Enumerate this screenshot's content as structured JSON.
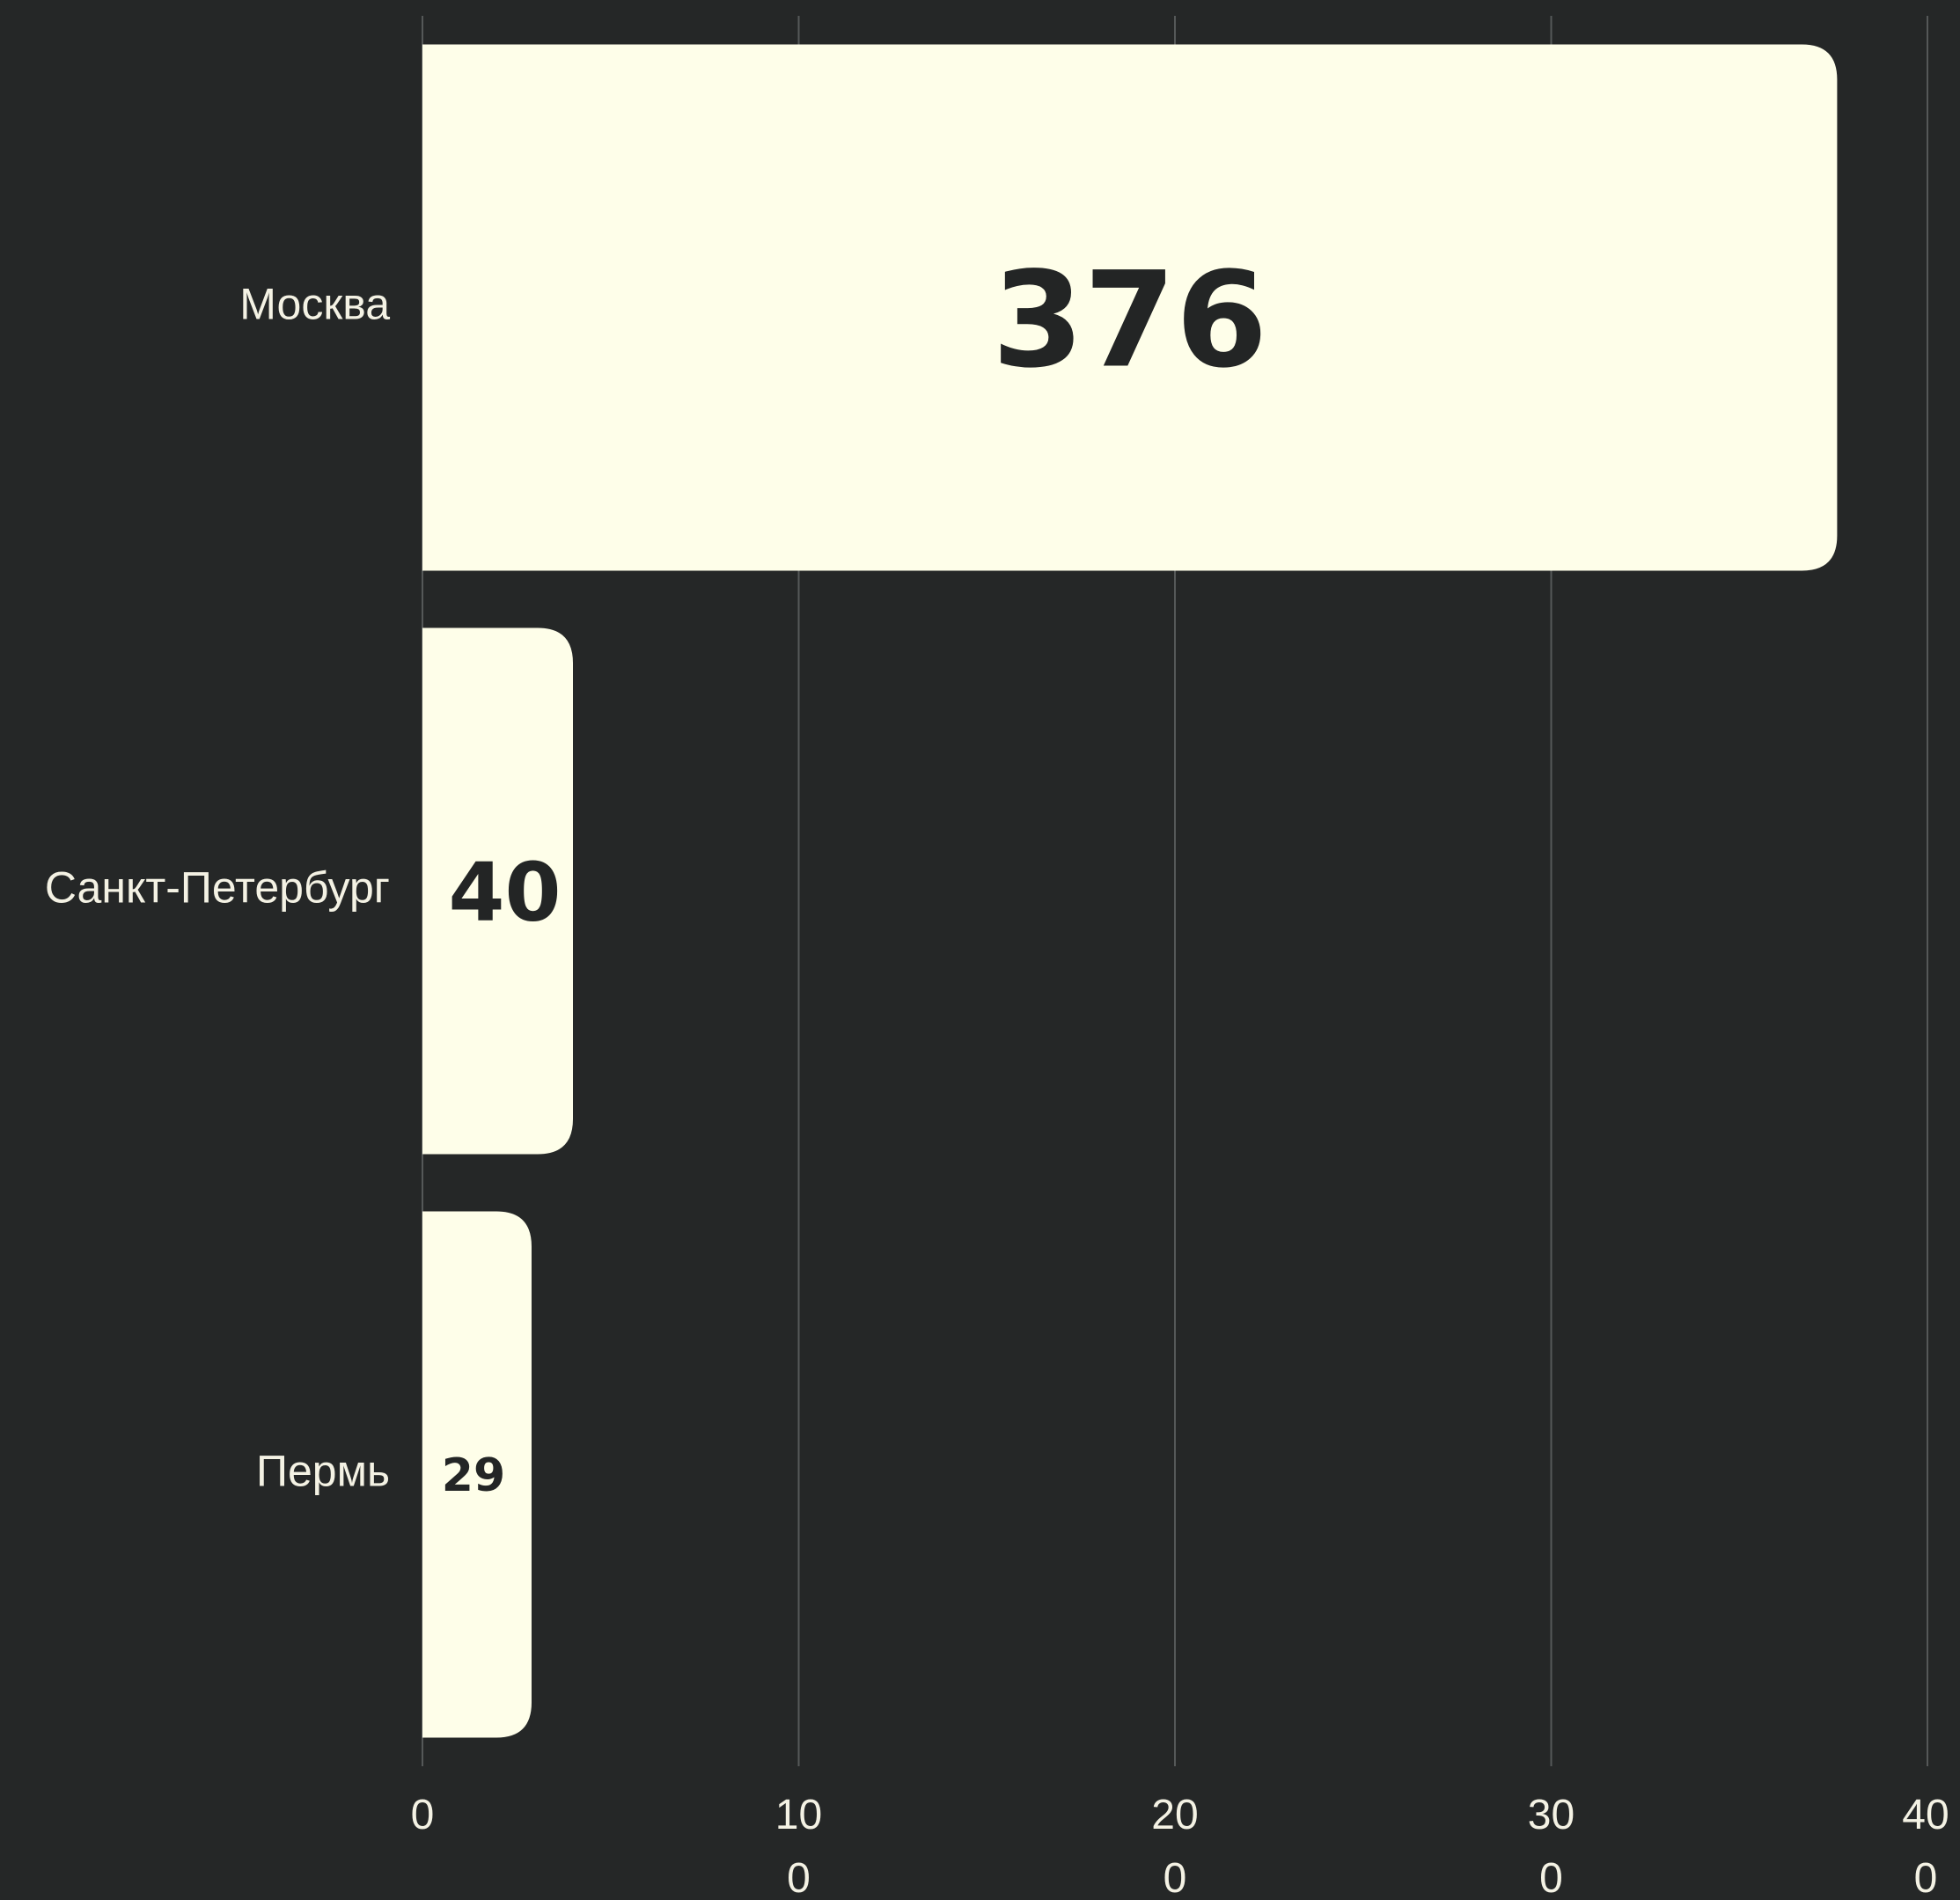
{
  "chart_data": {
    "type": "bar",
    "orientation": "horizontal",
    "categories": [
      "Москва",
      "Санкт-Петербург",
      "Пермь"
    ],
    "values": [
      376,
      40,
      29
    ],
    "value_labels": [
      "376",
      "40",
      "29"
    ],
    "x_ticks": [
      0,
      100,
      200,
      300,
      400
    ],
    "x_tick_labels": [
      [
        "0"
      ],
      [
        "10",
        "0"
      ],
      [
        "20",
        "0"
      ],
      [
        "30",
        "0"
      ],
      [
        "40",
        "0"
      ]
    ],
    "xlim": [
      0,
      400
    ],
    "grid": "vertical",
    "colors": {
      "background": "#252727",
      "bar": "#fefee9",
      "text": "#f4f2e4",
      "value_text": "#232525",
      "grid": "#555858"
    }
  }
}
